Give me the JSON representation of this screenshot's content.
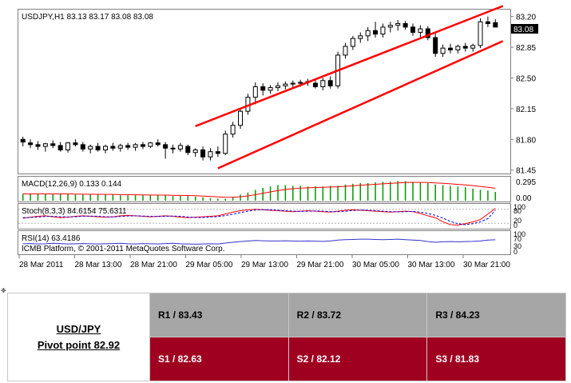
{
  "chart_data": {
    "type": "candlestick",
    "symbol_line": "USDJPY,H1  83.13 83.17 83.08 83.08",
    "last_price_label": "83.08",
    "y_ticks": [
      "83.20",
      "82.85",
      "82.50",
      "82.15",
      "81.80",
      "81.45"
    ],
    "y_tick_values": [
      83.2,
      82.85,
      82.5,
      82.15,
      81.8,
      81.45
    ],
    "ylim": [
      81.42,
      83.27
    ],
    "x_tick_labels": [
      "28 Mar 2011",
      "28 Mar 13:00",
      "28 Mar 21:00",
      "29 Mar 05:00",
      "29 Mar 13:00",
      "29 Mar 21:00",
      "30 Mar 05:00",
      "30 Mar 13:00",
      "30 Mar 21:00"
    ],
    "candles": [
      [
        81.8,
        81.83,
        81.72,
        81.77
      ],
      [
        81.76,
        81.8,
        81.7,
        81.74
      ],
      [
        81.74,
        81.78,
        81.68,
        81.72
      ],
      [
        81.72,
        81.76,
        81.66,
        81.75
      ],
      [
        81.75,
        81.79,
        81.7,
        81.73
      ],
      [
        81.73,
        81.77,
        81.66,
        81.68
      ],
      [
        81.68,
        81.77,
        81.65,
        81.76
      ],
      [
        81.76,
        81.8,
        81.72,
        81.74
      ],
      [
        81.74,
        81.77,
        81.66,
        81.69
      ],
      [
        81.69,
        81.74,
        81.64,
        81.72
      ],
      [
        81.72,
        81.76,
        81.66,
        81.68
      ],
      [
        81.68,
        81.74,
        81.64,
        81.72
      ],
      [
        81.72,
        81.76,
        81.67,
        81.7
      ],
      [
        81.7,
        81.75,
        81.66,
        81.73
      ],
      [
        81.73,
        81.76,
        81.68,
        81.71
      ],
      [
        81.71,
        81.76,
        81.67,
        81.74
      ],
      [
        81.74,
        81.77,
        81.69,
        81.72
      ],
      [
        81.72,
        81.77,
        81.7,
        81.76
      ],
      [
        81.76,
        81.8,
        81.72,
        81.74
      ],
      [
        81.74,
        81.77,
        81.58,
        81.7
      ],
      [
        81.7,
        81.74,
        81.64,
        81.69
      ],
      [
        81.69,
        81.76,
        81.66,
        81.73
      ],
      [
        81.72,
        81.74,
        81.62,
        81.65
      ],
      [
        81.65,
        81.7,
        81.6,
        81.68
      ],
      [
        81.68,
        81.72,
        81.56,
        81.6
      ],
      [
        81.6,
        81.7,
        81.56,
        81.66
      ],
      [
        81.66,
        81.72,
        81.6,
        81.64
      ],
      [
        81.64,
        81.9,
        81.62,
        81.86
      ],
      [
        81.86,
        82.0,
        81.82,
        81.96
      ],
      [
        81.96,
        82.16,
        81.92,
        82.12
      ],
      [
        82.12,
        82.32,
        82.08,
        82.28
      ],
      [
        82.28,
        82.45,
        82.2,
        82.4
      ],
      [
        82.4,
        82.44,
        82.3,
        82.36
      ],
      [
        82.36,
        82.42,
        82.32,
        82.39
      ],
      [
        82.39,
        82.45,
        82.35,
        82.41
      ],
      [
        82.41,
        82.46,
        82.37,
        82.43
      ],
      [
        82.43,
        82.47,
        82.39,
        82.44
      ],
      [
        82.44,
        82.48,
        82.4,
        82.45
      ],
      [
        82.45,
        82.49,
        82.41,
        82.46
      ],
      [
        82.44,
        82.48,
        82.38,
        82.4
      ],
      [
        82.4,
        82.5,
        82.36,
        82.47
      ],
      [
        82.47,
        82.52,
        82.38,
        82.41
      ],
      [
        82.41,
        82.8,
        82.38,
        82.76
      ],
      [
        82.76,
        82.9,
        82.72,
        82.86
      ],
      [
        82.86,
        82.98,
        82.82,
        82.95
      ],
      [
        82.95,
        83.02,
        82.9,
        82.98
      ],
      [
        82.98,
        83.08,
        82.92,
        83.04
      ],
      [
        83.04,
        83.14,
        82.96,
        83.0
      ],
      [
        83.0,
        83.12,
        82.96,
        83.08
      ],
      [
        83.08,
        83.14,
        83.02,
        83.1
      ],
      [
        83.1,
        83.16,
        83.04,
        83.12
      ],
      [
        83.12,
        83.15,
        83.05,
        83.08
      ],
      [
        83.08,
        83.12,
        82.98,
        83.02
      ],
      [
        83.02,
        83.1,
        82.96,
        83.06
      ],
      [
        83.06,
        83.09,
        82.93,
        82.96
      ],
      [
        82.96,
        83.02,
        82.74,
        82.78
      ],
      [
        82.78,
        82.88,
        82.74,
        82.84
      ],
      [
        82.84,
        82.89,
        82.78,
        82.82
      ],
      [
        82.82,
        82.88,
        82.78,
        82.86
      ],
      [
        82.86,
        82.9,
        82.8,
        82.84
      ],
      [
        82.84,
        82.89,
        82.8,
        82.87
      ],
      [
        82.87,
        83.18,
        82.84,
        83.14
      ],
      [
        83.14,
        83.2,
        83.08,
        83.12
      ],
      [
        83.13,
        83.17,
        83.08,
        83.08
      ]
    ],
    "channel_upper": [
      [
        23,
        81.95
      ],
      [
        64,
        83.32
      ]
    ],
    "channel_lower": [
      [
        26,
        81.47
      ],
      [
        64,
        82.92
      ]
    ],
    "macd_label": "MACD(12,26,9) 0.133 0.144",
    "macd_ticks": [
      "0.295",
      "0.00"
    ],
    "macd_values": [
      0.1,
      0.1,
      0.1,
      0.1,
      0.1,
      0.1,
      0.1,
      0.09,
      0.09,
      0.09,
      0.09,
      0.09,
      0.09,
      0.08,
      0.08,
      0.08,
      0.08,
      0.08,
      0.08,
      0.08,
      0.07,
      0.07,
      0.07,
      0.06,
      0.05,
      0.04,
      0.03,
      0.03,
      0.05,
      0.09,
      0.12,
      0.16,
      0.19,
      0.21,
      0.23,
      0.23,
      0.22,
      0.22,
      0.21,
      0.21,
      0.21,
      0.22,
      0.22,
      0.24,
      0.25,
      0.26,
      0.26,
      0.27,
      0.28,
      0.28,
      0.29,
      0.29,
      0.28,
      0.27,
      0.26,
      0.24,
      0.23,
      0.22,
      0.21,
      0.2,
      0.18,
      0.16,
      0.15,
      0.13
    ],
    "stoch_label": "Stoch(8,3,3) 84.6154 75.6311",
    "stoch_ticks": [
      "100",
      "80",
      "20",
      "0"
    ],
    "stoch_main": [
      42,
      46,
      50,
      52,
      48,
      44,
      46,
      50,
      52,
      50,
      48,
      46,
      48,
      52,
      54,
      52,
      50,
      48,
      50,
      52,
      50,
      46,
      44,
      46,
      48,
      50,
      52,
      60,
      68,
      74,
      78,
      80,
      78,
      76,
      74,
      72,
      70,
      72,
      74,
      72,
      70,
      68,
      72,
      76,
      78,
      76,
      74,
      72,
      70,
      68,
      70,
      72,
      70,
      62,
      52,
      44,
      26,
      14,
      12,
      18,
      26,
      36,
      60,
      84.6154
    ],
    "stoch_signal": [
      44,
      45,
      47,
      49,
      50,
      48,
      47,
      48,
      50,
      51,
      50,
      48,
      47,
      49,
      51,
      52,
      51,
      50,
      49,
      50,
      51,
      50,
      47,
      45,
      45,
      47,
      49,
      53,
      59,
      66,
      72,
      77,
      79,
      78,
      76,
      74,
      72,
      71,
      72,
      73,
      72,
      70,
      70,
      72,
      75,
      77,
      76,
      74,
      72,
      70,
      69,
      70,
      71,
      68,
      62,
      54,
      42,
      28,
      18,
      14,
      18,
      26,
      40,
      75.6311
    ],
    "rsi_label": "RSI(14) 63.4186",
    "rsi_ticks": [
      "100",
      "70",
      "30",
      "0"
    ],
    "rsi_values": [
      45,
      46,
      44,
      45,
      47,
      46,
      44,
      45,
      46,
      45,
      44,
      45,
      46,
      47,
      45,
      44,
      46,
      45,
      44,
      46,
      47,
      45,
      44,
      43,
      44,
      45,
      44,
      48,
      52,
      55,
      58,
      60,
      59,
      58,
      58,
      59,
      58,
      57,
      58,
      57,
      56,
      58,
      62,
      64,
      65,
      66,
      66,
      65,
      64,
      65,
      66,
      64,
      62,
      60,
      55,
      52,
      54,
      55,
      54,
      55,
      56,
      58,
      62,
      63.4186
    ],
    "copyright": "ICMB Platform, © 2001-2011 MetaQuotes Software Corp."
  },
  "pivot": {
    "pair": "USD/JPY",
    "pivot_line": "Pivot point 82.92",
    "r1": "R1 / 83.43",
    "r2": "R2 / 83.72",
    "r3": "R3 / 84.23",
    "s1": "S1 / 82.63",
    "s2": "S2 / 82.12",
    "s3": "S3 / 81.83"
  },
  "colors": {
    "trendline": "#ff0000",
    "macd_hist": "#009900",
    "signal": "#ff0000",
    "stoch_main": "#ff0000",
    "stoch_signal": "#0000ff",
    "rsi": "#3333cc",
    "resistance_bg": "#a6a6a6",
    "support_bg": "#a00020"
  }
}
